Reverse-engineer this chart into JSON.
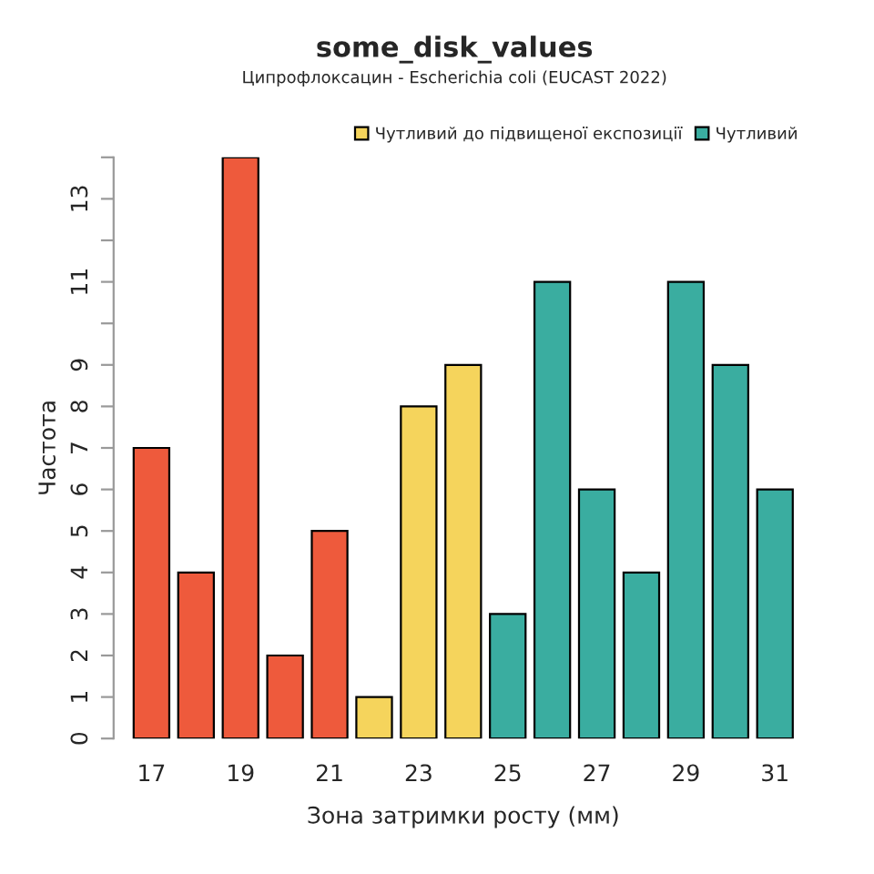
{
  "chart_data": {
    "type": "bar",
    "title": "some_disk_values",
    "subtitle": "Ципрофлоксацин - Escherichia coli (EUCAST 2022)",
    "xlabel": "Зона затримки росту (мм)",
    "ylabel": "Частота",
    "categories": [
      "17",
      null,
      "19",
      null,
      "21",
      null,
      "23",
      null,
      "25",
      null,
      "27",
      null,
      "29",
      null,
      "31"
    ],
    "series": [
      {
        "color": "#ee5a3c",
        "values": [
          7,
          4,
          14,
          2,
          5,
          null,
          null,
          null,
          null,
          null,
          null,
          null,
          null,
          null,
          null
        ]
      },
      {
        "name": "Чутливий до підвищеної експозиції",
        "color": "#f5d45c",
        "values": [
          null,
          null,
          null,
          null,
          null,
          1,
          8,
          9,
          null,
          null,
          null,
          null,
          null,
          null,
          null
        ]
      },
      {
        "name": "Чутливий",
        "color": "#3aada0",
        "values": [
          null,
          null,
          null,
          null,
          null,
          null,
          null,
          null,
          3,
          11,
          6,
          4,
          11,
          9,
          6
        ]
      }
    ],
    "ylim": [
      0,
      14
    ],
    "yticks": [
      0,
      1,
      2,
      3,
      4,
      5,
      6,
      7,
      8,
      9,
      {
        "value": 10,
        "label": null
      },
      11,
      {
        "value": 12,
        "label": null
      },
      13,
      {
        "value": 14,
        "label": null
      }
    ],
    "legend": "top right",
    "grid": false
  }
}
